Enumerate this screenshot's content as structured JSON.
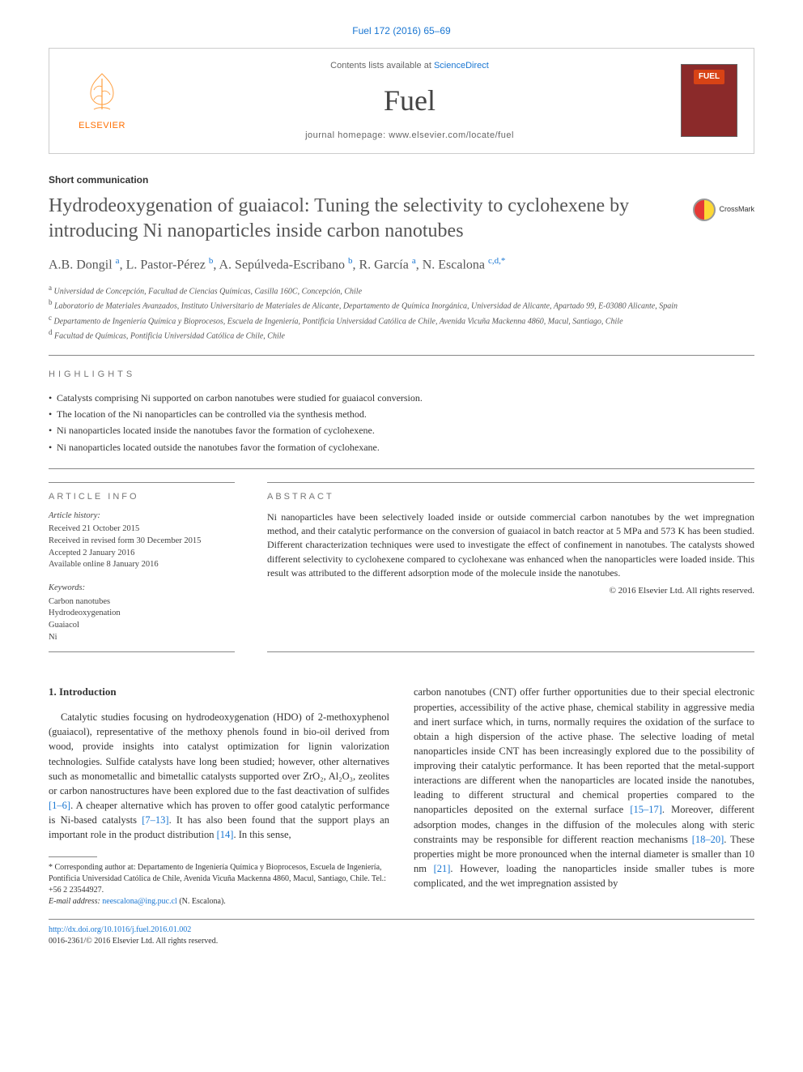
{
  "citation": "Fuel 172 (2016) 65–69",
  "masthead": {
    "contents_prefix": "Contents lists available at ",
    "contents_link": "ScienceDirect",
    "journal": "Fuel",
    "homepage_prefix": "journal homepage: ",
    "homepage_url": "www.elsevier.com/locate/fuel",
    "publisher": "ELSEVIER",
    "cover_label": "FUEL"
  },
  "article_type": "Short communication",
  "title": "Hydrodeoxygenation of guaiacol: Tuning the selectivity to cyclohexene by introducing Ni nanoparticles inside carbon nanotubes",
  "crossmark": "CrossMark",
  "authors_html": "A.B. Dongil <sup>a</sup>, L. Pastor-Pérez <sup>b</sup>, A. Sepúlveda-Escribano <sup>b</sup>, R. García <sup>a</sup>, N. Escalona <sup>c,d,*</sup>",
  "affiliations": [
    {
      "sup": "a",
      "text": "Universidad de Concepción, Facultad de Ciencias Químicas, Casilla 160C, Concepción, Chile"
    },
    {
      "sup": "b",
      "text": "Laboratorio de Materiales Avanzados, Instituto Universitario de Materiales de Alicante, Departamento de Química Inorgánica, Universidad de Alicante, Apartado 99, E-03080 Alicante, Spain"
    },
    {
      "sup": "c",
      "text": "Departamento de Ingeniería Química y Bioprocesos, Escuela de Ingeniería, Pontificia Universidad Católica de Chile, Avenida Vicuña Mackenna 4860, Macul, Santiago, Chile"
    },
    {
      "sup": "d",
      "text": "Facultad de Químicas, Pontificia Universidad Católica de Chile, Chile"
    }
  ],
  "highlights_label": "HIGHLIGHTS",
  "highlights": [
    "Catalysts comprising Ni supported on carbon nanotubes were studied for guaiacol conversion.",
    "The location of the Ni nanoparticles can be controlled via the synthesis method.",
    "Ni nanoparticles located inside the nanotubes favor the formation of cyclohexene.",
    "Ni nanoparticles located outside the nanotubes favor the formation of cyclohexane."
  ],
  "article_info_label": "ARTICLE INFO",
  "history_label": "Article history:",
  "history": [
    "Received 21 October 2015",
    "Received in revised form 30 December 2015",
    "Accepted 2 January 2016",
    "Available online 8 January 2016"
  ],
  "keywords_label": "Keywords:",
  "keywords": [
    "Carbon nanotubes",
    "Hydrodeoxygenation",
    "Guaiacol",
    "Ni"
  ],
  "abstract_label": "ABSTRACT",
  "abstract": "Ni nanoparticles have been selectively loaded inside or outside commercial carbon nanotubes by the wet impregnation method, and their catalytic performance on the conversion of guaiacol in batch reactor at 5 MPa and 573 K has been studied. Different characterization techniques were used to investigate the effect of confinement in nanotubes. The catalysts showed different selectivity to cyclohexene compared to cyclohexane was enhanced when the nanoparticles were loaded inside. This result was attributed to the different adsorption mode of the molecule inside the nanotubes.",
  "abstract_copyright": "© 2016 Elsevier Ltd. All rights reserved.",
  "intro_heading": "1. Introduction",
  "intro_col1": "Catalytic studies focusing on hydrodeoxygenation (HDO) of 2-methoxyphenol (guaiacol), representative of the methoxy phenols found in bio-oil derived from wood, provide insights into catalyst optimization for lignin valorization technologies. Sulfide catalysts have long been studied; however, other alternatives such as monometallic and bimetallic catalysts supported over ZrO₂, Al₂O₃, zeolites or carbon nanostructures have been explored due to the fast deactivation of sulfides [1–6]. A cheaper alternative which has proven to offer good catalytic performance is Ni-based catalysts [7–13]. It has also been found that the support plays an important role in the product distribution [14]. In this sense,",
  "intro_col2": "carbon nanotubes (CNT) offer further opportunities due to their special electronic properties, accessibility of the active phase, chemical stability in aggressive media and inert surface which, in turns, normally requires the oxidation of the surface to obtain a high dispersion of the active phase. The selective loading of metal nanoparticles inside CNT has been increasingly explored due to the possibility of improving their catalytic performance. It has been reported that the metal-support interactions are different when the nanoparticles are located inside the nanotubes, leading to different structural and chemical properties compared to the nanoparticles deposited on the external surface [15–17]. Moreover, different adsorption modes, changes in the diffusion of the molecules along with steric constraints may be responsible for different reaction mechanisms [18–20]. These properties might be more pronounced when the internal diameter is smaller than 10 nm [21]. However, loading the nanoparticles inside smaller tubes is more complicated, and the wet impregnation assisted by",
  "footnote_corresponding": "* Corresponding author at: Departamento de Ingeniería Química y Bioprocesos, Escuela de Ingeniería, Pontificia Universidad Católica de Chile, Avenida Vicuña Mackenna 4860, Macul, Santiago, Chile. Tel.: +56 2 23544927.",
  "footnote_email_label": "E-mail address: ",
  "footnote_email": "neescalona@ing.puc.cl",
  "footnote_email_suffix": " (N. Escalona).",
  "doi_url": "http://dx.doi.org/10.1016/j.fuel.2016.01.002",
  "issn_line": "0016-2361/© 2016 Elsevier Ltd. All rights reserved.",
  "colors": {
    "link": "#1976d2",
    "elsevier_orange": "#ff6f00",
    "cover_bg": "#8b2a2a",
    "cover_badge": "#d84315",
    "text": "#333333",
    "rule": "#888888"
  }
}
